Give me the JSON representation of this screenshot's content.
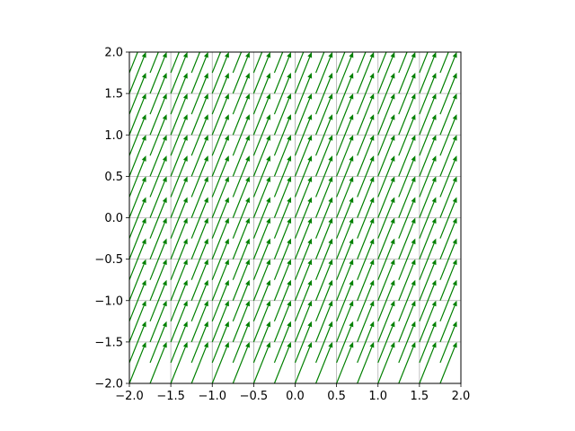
{
  "chart_data": {
    "type": "quiver",
    "title": "",
    "xlabel": "",
    "ylabel": "",
    "xlim": [
      -2.0,
      2.0
    ],
    "ylim": [
      -2.0,
      2.0
    ],
    "grid": true,
    "aspect": "equal",
    "x_ticks": [
      -2.0,
      -1.5,
      -1.0,
      -0.5,
      0.0,
      0.5,
      1.0,
      1.5,
      2.0
    ],
    "y_ticks": [
      -2.0,
      -1.5,
      -1.0,
      -0.5,
      0.0,
      0.5,
      1.0,
      1.5,
      2.0
    ],
    "x_tick_labels": [
      "−2.0",
      "−1.5",
      "−1.0",
      "−0.5",
      "0.0",
      "0.5",
      "1.0",
      "1.5",
      "2.0"
    ],
    "y_tick_labels": [
      "−2.0",
      "−1.5",
      "−1.0",
      "−0.5",
      "0.0",
      "0.5",
      "1.0",
      "1.5",
      "2.0"
    ],
    "grid_points": {
      "x": [
        -2.0,
        -1.75,
        -1.5,
        -1.25,
        -1.0,
        -0.75,
        -0.5,
        -0.25,
        0.0,
        0.25,
        0.5,
        0.75,
        1.0,
        1.25,
        1.5,
        1.75
      ],
      "y": [
        -2.0,
        -1.75,
        -1.5,
        -1.25,
        -1.0,
        -0.75,
        -0.5,
        -0.25,
        0.0,
        0.25,
        0.5,
        0.75,
        1.0,
        1.25,
        1.5,
        1.75
      ]
    },
    "vector": {
      "u": 0.2,
      "v": 0.5
    },
    "arrow_color": "#008000",
    "grid_color": "#b0b0b0"
  }
}
